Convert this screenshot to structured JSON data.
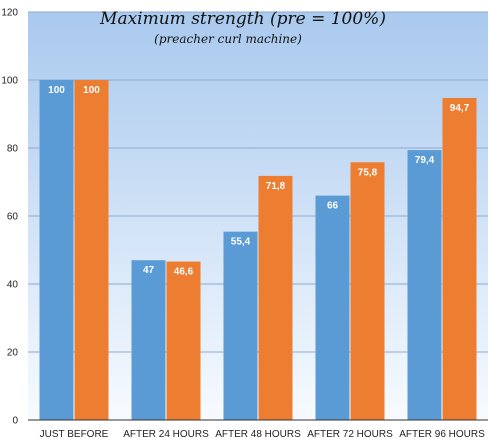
{
  "chart_data": {
    "type": "bar",
    "title": "Maximum strength (pre = 100%)",
    "subtitle": "(preacher curl machine)",
    "categories": [
      "JUST BEFORE",
      "AFTER 24 HOURS",
      "AFTER 48 HOURS",
      "AFTER 72 HOURS",
      "AFTER 96 HOURS"
    ],
    "series": [
      {
        "values": [
          100,
          47,
          55.4,
          66,
          79.4
        ],
        "labels": [
          "100",
          "47",
          "55,4",
          "66",
          "79,4"
        ],
        "color": "#5b9bd5"
      },
      {
        "values": [
          100,
          46.6,
          71.8,
          75.8,
          94.7
        ],
        "labels": [
          "100",
          "46,6",
          "71,8",
          "75,8",
          "94,7"
        ],
        "color": "#ed7d31"
      }
    ],
    "ylim": [
      0,
      120
    ],
    "yticks": [
      0,
      20,
      40,
      60,
      80,
      100,
      120
    ],
    "xlabel": "",
    "ylabel": "",
    "grid": true,
    "legend": "none",
    "background_gradient": [
      "#a9c9ee",
      "#f7fbff"
    ],
    "gridline_color": "#8faad0"
  }
}
